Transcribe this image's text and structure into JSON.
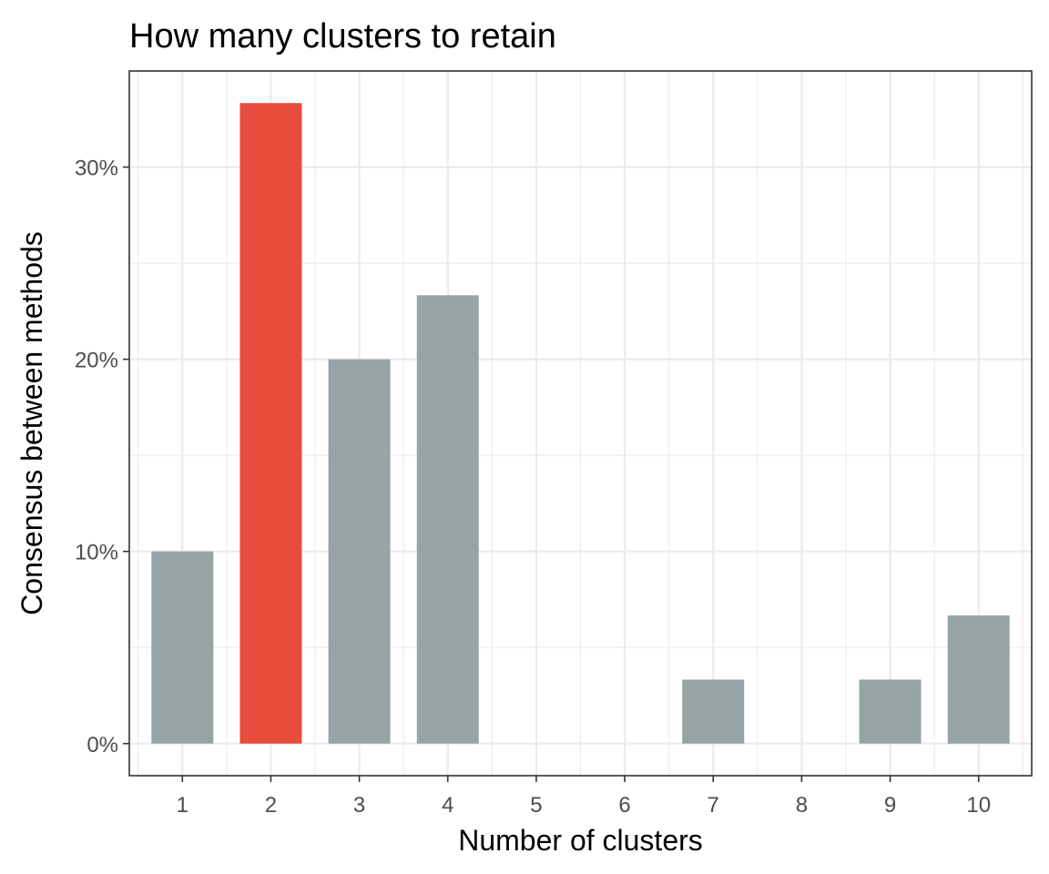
{
  "chart_data": {
    "type": "bar",
    "title": "How many clusters to retain",
    "xlabel": "Number of clusters",
    "ylabel": "Consensus between methods",
    "categories": [
      "1",
      "2",
      "3",
      "4",
      "5",
      "6",
      "7",
      "8",
      "9",
      "10"
    ],
    "values": [
      0.1,
      0.3333,
      0.2,
      0.2333,
      0,
      0,
      0.0333,
      0,
      0.0333,
      0.0667
    ],
    "highlight_index": 1,
    "colors": {
      "default": "#95a5a6",
      "highlight": "#e74c3c"
    },
    "yticks": [
      0,
      0.1,
      0.2,
      0.3
    ],
    "ytick_labels": [
      "0%",
      "10%",
      "20%",
      "30%"
    ],
    "ylim": [
      -0.0167,
      0.35
    ],
    "grid": true,
    "legend": "none"
  }
}
